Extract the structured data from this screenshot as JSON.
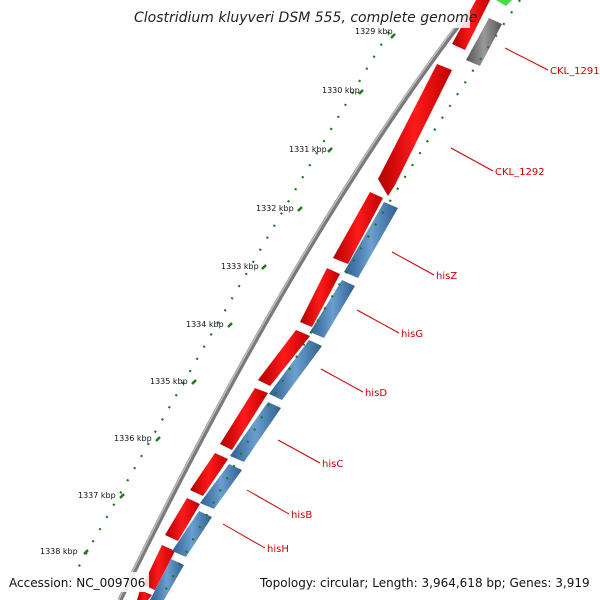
{
  "title": "Clostridium kluyveri DSM 555, complete genome",
  "ticks": [
    "1329 kbp",
    "1330 kbp",
    "1331 kbp",
    "1332 kbp",
    "1333 kbp",
    "1334 kbp",
    "1335 kbp",
    "1336 kbp",
    "1337 kbp",
    "1338 kbp"
  ],
  "genes": [
    "CKL_1291",
    "CKL_1292",
    "hisZ",
    "hisG",
    "hisD",
    "hisC",
    "hisB",
    "hisH"
  ],
  "footer": {
    "accession": "Accession: NC_009706",
    "stats": "Topology: circular; Length: 3,964,618 bp; Genes: 3,919"
  },
  "colors": {
    "forward_gene": "#ff0000",
    "reverse_gene": "#4a7fb5",
    "backbone": "#808080",
    "tick": "#1a7a1a",
    "label": "#cc0000",
    "highlight": "#44dd44"
  }
}
